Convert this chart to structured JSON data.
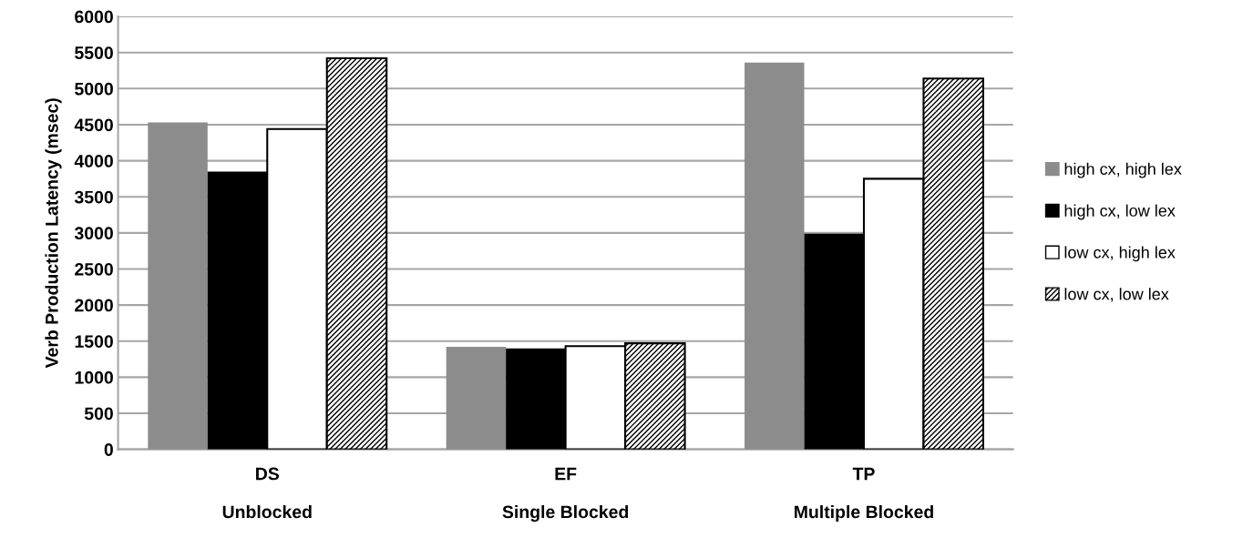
{
  "chart_data": {
    "type": "bar",
    "ylabel": "Verb Production Latency (msec)",
    "categories": [
      "DS\n\nUnblocked",
      "EF\n\nSingle Blocked",
      "TP\n\nMultiple Blocked"
    ],
    "series": [
      {
        "name": "high cx, high lex",
        "color": "#8c8c8c",
        "values": [
          4530,
          1420,
          5360
        ]
      },
      {
        "name": "high cx, low lex",
        "color": "#000000",
        "values": [
          3850,
          1400,
          2990
        ]
      },
      {
        "name": "low cx, high lex",
        "color": "#ffffff",
        "values": [
          4440,
          1430,
          3750
        ]
      },
      {
        "name": "low cx, low lex",
        "color": "#000000",
        "values": [
          5420,
          1470,
          5140
        ]
      }
    ],
    "ylim": [
      0,
      6000
    ],
    "yticks": [
      0,
      500,
      1000,
      1500,
      2000,
      2500,
      3000,
      3500,
      4000,
      4500,
      5000,
      5500,
      6000
    ],
    "grid": "y",
    "legend": "right"
  }
}
